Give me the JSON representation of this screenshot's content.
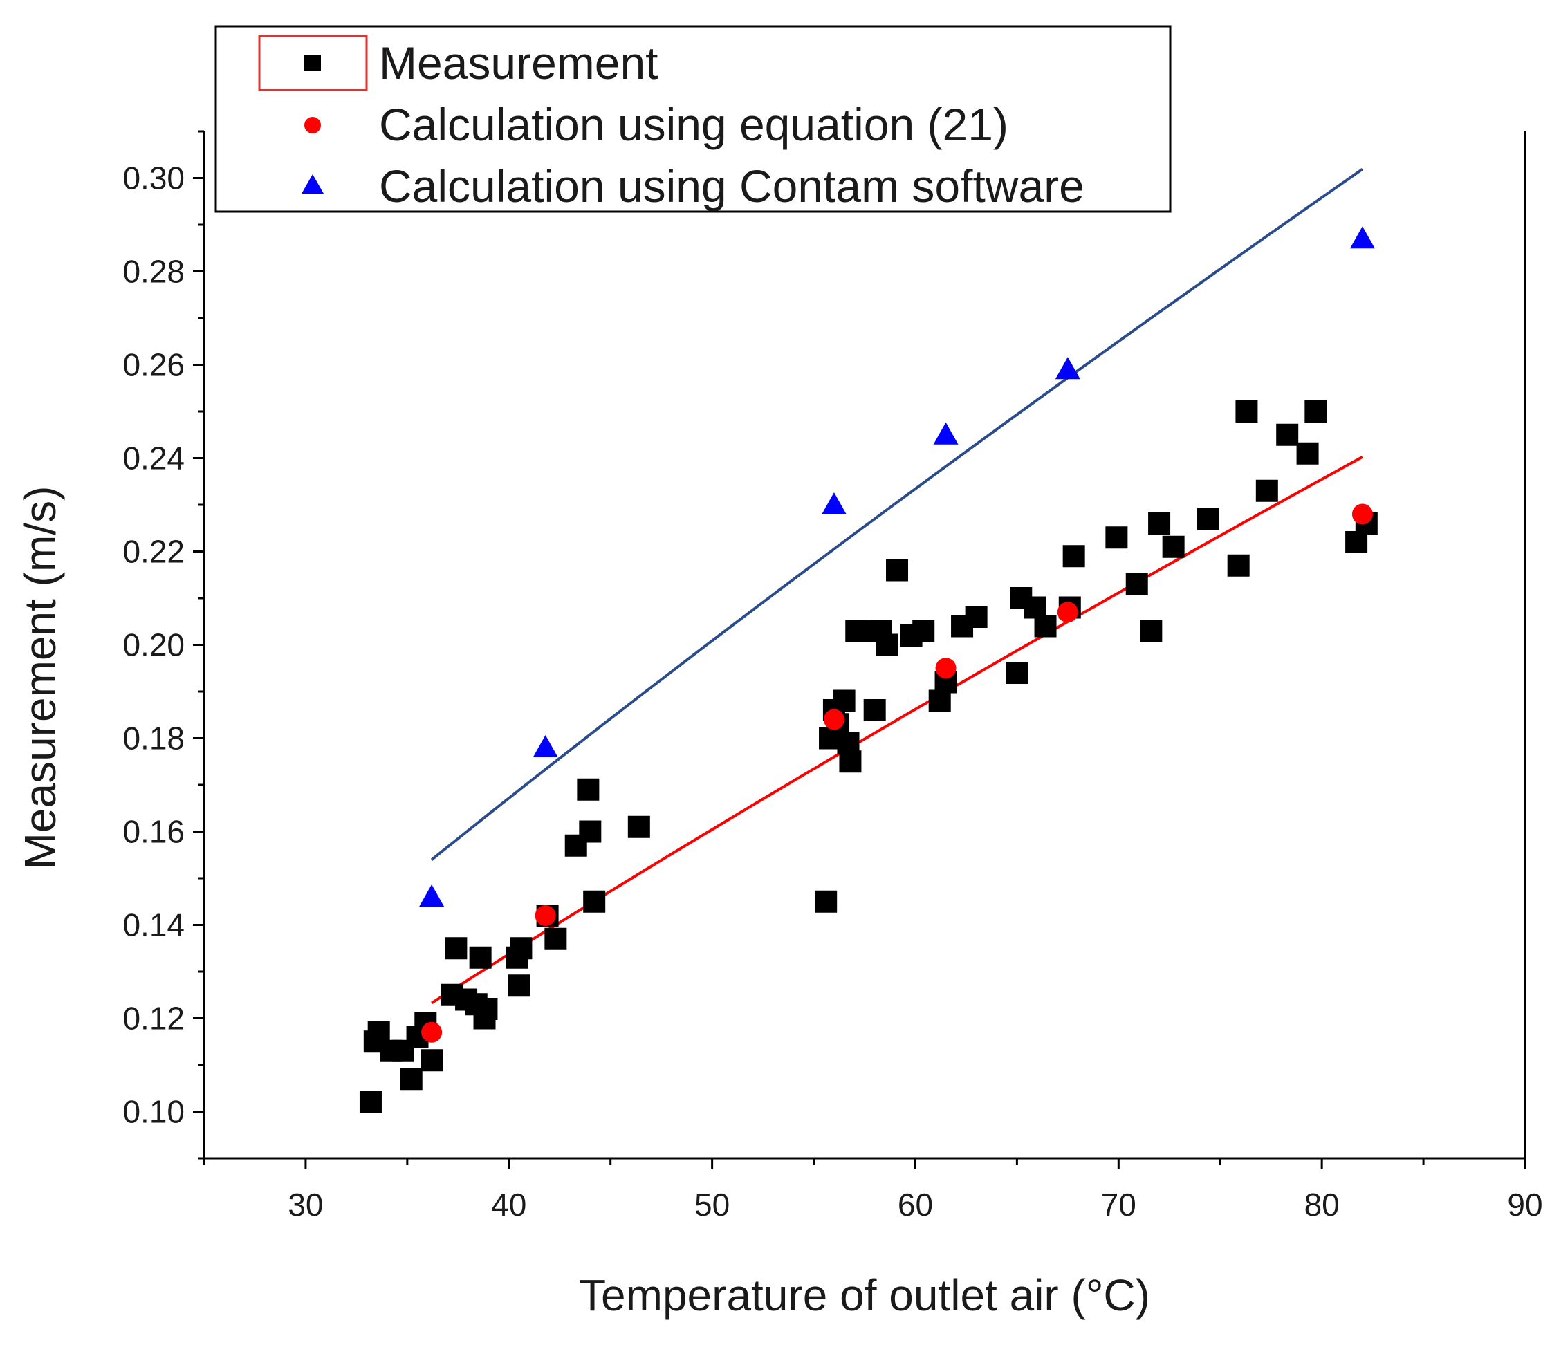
{
  "chart_data": {
    "type": "scatter",
    "xlabel": "Temperature of outlet air (°C)",
    "ylabel": "Measurement (m/s)",
    "xlim": [
      25,
      90
    ],
    "ylim": [
      0.09,
      0.31
    ],
    "xticks": [
      30,
      40,
      50,
      60,
      70,
      80,
      90
    ],
    "yticks": [
      0.1,
      0.12,
      0.14,
      0.16,
      0.18,
      0.2,
      0.22,
      0.24,
      0.26,
      0.28,
      0.3
    ],
    "legend_position": "top-left",
    "series": [
      {
        "name": "Measurement",
        "marker": "square",
        "color": "#000000",
        "points": [
          [
            33.2,
            0.102
          ],
          [
            33.4,
            0.115
          ],
          [
            33.6,
            0.117
          ],
          [
            34.2,
            0.113
          ],
          [
            34.8,
            0.113
          ],
          [
            35.2,
            0.107
          ],
          [
            35.5,
            0.116
          ],
          [
            35.9,
            0.119
          ],
          [
            36.2,
            0.111
          ],
          [
            37.2,
            0.125
          ],
          [
            37.4,
            0.135
          ],
          [
            37.9,
            0.124
          ],
          [
            38.4,
            0.123
          ],
          [
            38.6,
            0.133
          ],
          [
            38.8,
            0.12
          ],
          [
            38.9,
            0.122
          ],
          [
            40.4,
            0.133
          ],
          [
            40.6,
            0.135
          ],
          [
            40.5,
            0.127
          ],
          [
            41.9,
            0.142
          ],
          [
            42.3,
            0.137
          ],
          [
            43.3,
            0.157
          ],
          [
            43.9,
            0.169
          ],
          [
            44.0,
            0.16
          ],
          [
            44.2,
            0.145
          ],
          [
            46.4,
            0.161
          ],
          [
            55.6,
            0.145
          ],
          [
            55.8,
            0.18
          ],
          [
            56.0,
            0.186
          ],
          [
            56.2,
            0.183
          ],
          [
            56.5,
            0.188
          ],
          [
            56.7,
            0.179
          ],
          [
            56.8,
            0.175
          ],
          [
            57.1,
            0.203
          ],
          [
            57.7,
            0.203
          ],
          [
            58.0,
            0.186
          ],
          [
            58.3,
            0.203
          ],
          [
            58.6,
            0.2
          ],
          [
            59.1,
            0.216
          ],
          [
            59.8,
            0.202
          ],
          [
            60.4,
            0.203
          ],
          [
            61.2,
            0.188
          ],
          [
            61.5,
            0.192
          ],
          [
            62.3,
            0.204
          ],
          [
            63.0,
            0.206
          ],
          [
            65.0,
            0.194
          ],
          [
            65.2,
            0.21
          ],
          [
            65.9,
            0.208
          ],
          [
            66.4,
            0.204
          ],
          [
            67.6,
            0.208
          ],
          [
            67.8,
            0.219
          ],
          [
            69.9,
            0.223
          ],
          [
            70.9,
            0.213
          ],
          [
            71.6,
            0.203
          ],
          [
            72.0,
            0.226
          ],
          [
            72.7,
            0.221
          ],
          [
            74.4,
            0.227
          ],
          [
            75.9,
            0.217
          ],
          [
            76.3,
            0.25
          ],
          [
            77.3,
            0.233
          ],
          [
            78.3,
            0.245
          ],
          [
            79.3,
            0.241
          ],
          [
            79.7,
            0.25
          ],
          [
            81.7,
            0.222
          ],
          [
            82.2,
            0.226
          ]
        ]
      },
      {
        "name": "Calculation using equation (21)",
        "marker": "circle",
        "color": "#ff0000",
        "points": [
          [
            36.2,
            0.117
          ],
          [
            41.8,
            0.142
          ],
          [
            56.0,
            0.184
          ],
          [
            61.5,
            0.195
          ],
          [
            67.5,
            0.207
          ],
          [
            82.0,
            0.228
          ]
        ]
      },
      {
        "name": "Calculation using Contam software",
        "marker": "triangle",
        "color": "#0000ff",
        "line_color": "#2b4c8c",
        "points": [
          [
            36.2,
            0.146
          ],
          [
            41.8,
            0.178
          ],
          [
            56.0,
            0.23
          ],
          [
            61.5,
            0.245
          ],
          [
            67.5,
            0.259
          ],
          [
            82.0,
            0.287
          ]
        ]
      }
    ]
  }
}
